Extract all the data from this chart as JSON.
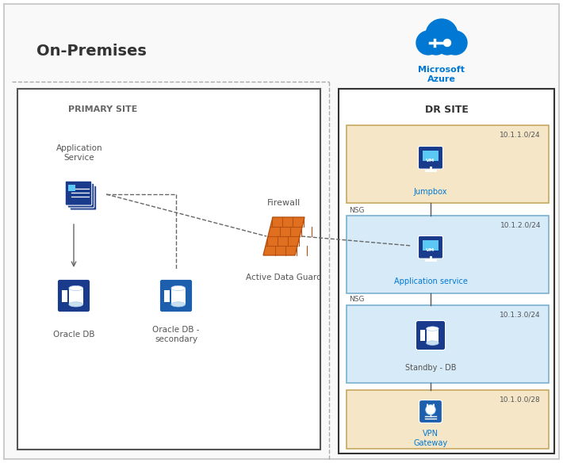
{
  "title_onprem": "On-Premises",
  "title_azure": "Microsoft\nAzure",
  "title_primary": "PRIMARY SITE",
  "title_dr": "DR SITE",
  "label_app_service": "Application\nService",
  "label_oracle_db": "Oracle DB",
  "label_oracle_db2": "Oracle DB -\nsecondary",
  "label_firewall": "Firewall",
  "label_adg": "Active Data Guard",
  "label_jumpbox": "Jumpbox",
  "label_app_svc_azure": "Application service",
  "label_standby_db": "Standby - DB",
  "label_vpn": "VPN\nGateway",
  "label_nsg1": "NSG",
  "label_nsg2": "NSG",
  "cidr_jumpbox": "10.1.1.0/24",
  "cidr_app": "10.1.2.0/24",
  "cidr_db": "10.1.3.0/24",
  "cidr_vpn": "10.1.0.0/28",
  "bg_color": "#ffffff",
  "subnet_beige": "#f5e6c8",
  "subnet_blue": "#d6eaf8",
  "icon_blue_dark": "#1a3a8c",
  "icon_blue_mid": "#1e5fad",
  "icon_blue_light": "#2196f3",
  "icon_orange": "#e07020",
  "azure_blue": "#0078d4",
  "text_dark": "#333333",
  "text_blue": "#0078d4",
  "border_dark": "#555555",
  "border_beige": "#c8a860",
  "border_blue_sub": "#7ab0d0"
}
